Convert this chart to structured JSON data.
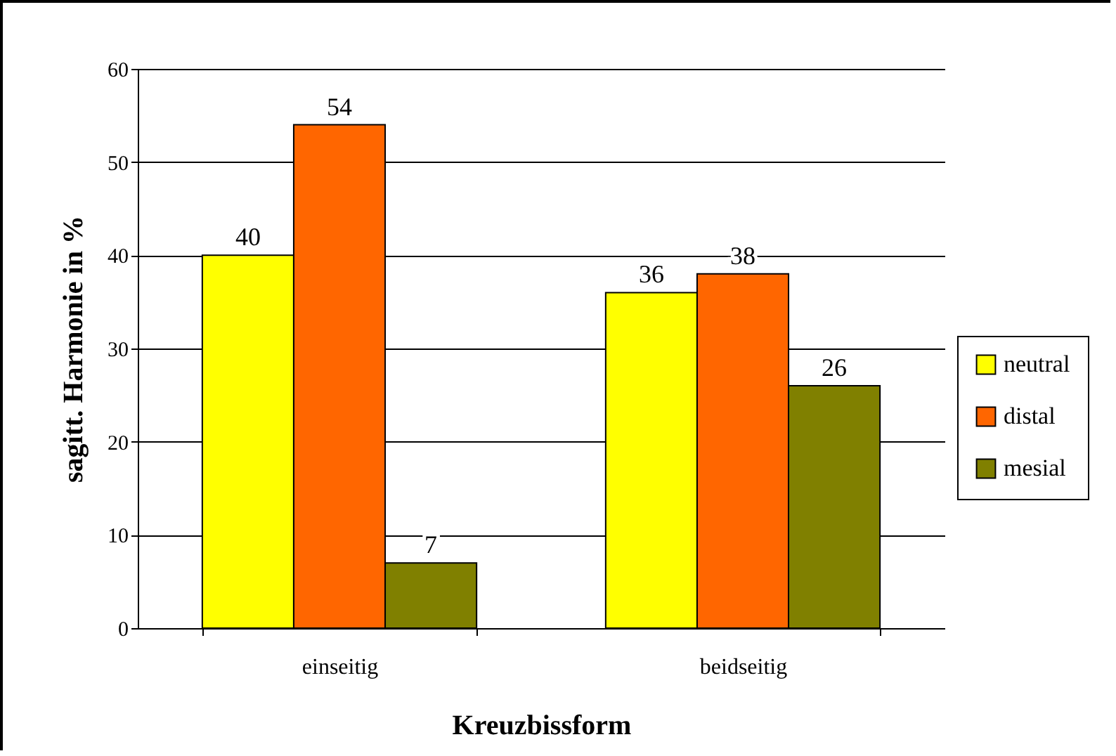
{
  "chart_data": {
    "type": "bar",
    "xlabel": "Kreuzbissform",
    "ylabel": "sagitt. Harmonie in %",
    "categories": [
      "einseitig",
      "beidseitig"
    ],
    "series": [
      {
        "name": "neutral",
        "color": "#ffff00",
        "values": [
          40,
          36
        ]
      },
      {
        "name": "distal",
        "color": "#ff6600",
        "values": [
          54,
          38
        ]
      },
      {
        "name": "mesial",
        "color": "#808000",
        "values": [
          7,
          26
        ]
      }
    ],
    "ylim": [
      0,
      60
    ],
    "yticks": [
      0,
      10,
      20,
      30,
      40,
      50,
      60
    ],
    "grid": "y",
    "legend": "right",
    "data_labels": true
  }
}
